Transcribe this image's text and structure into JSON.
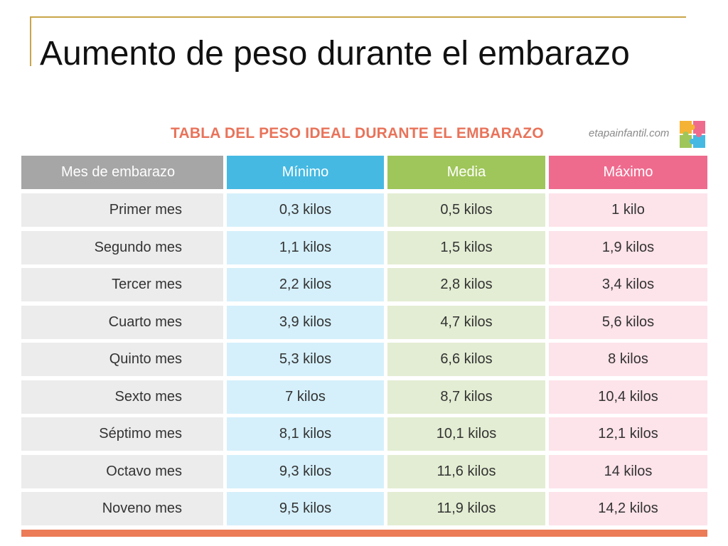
{
  "slide": {
    "title": "Aumento de peso durante el embarazo"
  },
  "table": {
    "heading": "TABLA DEL PESO IDEAL DURANTE EL EMBARAZO",
    "site": "etapainfantil.com",
    "columns": [
      "Mes de embarazo",
      "Mínimo",
      "Media",
      "Máximo"
    ],
    "rows": [
      [
        "Primer mes",
        "0,3 kilos",
        "0,5 kilos",
        "1 kilo"
      ],
      [
        "Segundo mes",
        "1,1 kilos",
        "1,5 kilos",
        "1,9 kilos"
      ],
      [
        "Tercer mes",
        "2,2 kilos",
        "2,8 kilos",
        "3,4 kilos"
      ],
      [
        "Cuarto mes",
        "3,9 kilos",
        "4,7 kilos",
        "5,6 kilos"
      ],
      [
        "Quinto mes",
        "5,3 kilos",
        "6,6 kilos",
        "8 kilos"
      ],
      [
        "Sexto mes",
        "7 kilos",
        "8,7 kilos",
        "10,4 kilos"
      ],
      [
        "Séptimo mes",
        "8,1 kilos",
        "10,1 kilos",
        "12,1 kilos"
      ],
      [
        "Octavo mes",
        "9,3 kilos",
        "11,6 kilos",
        "14 kilos"
      ],
      [
        "Noveno mes",
        "9,5 kilos",
        "11,9 kilos",
        "14,2 kilos"
      ]
    ]
  },
  "colors": {
    "heading": "#e8735a",
    "col_month": "#a6a6a6",
    "col_min": "#45b9e2",
    "col_avg": "#9fc65a",
    "col_max": "#ef6b8e",
    "frame": "#c9a54a",
    "bottom_bar": "#ec7b57"
  },
  "icons": {
    "logo": "puzzle-logo-icon"
  }
}
